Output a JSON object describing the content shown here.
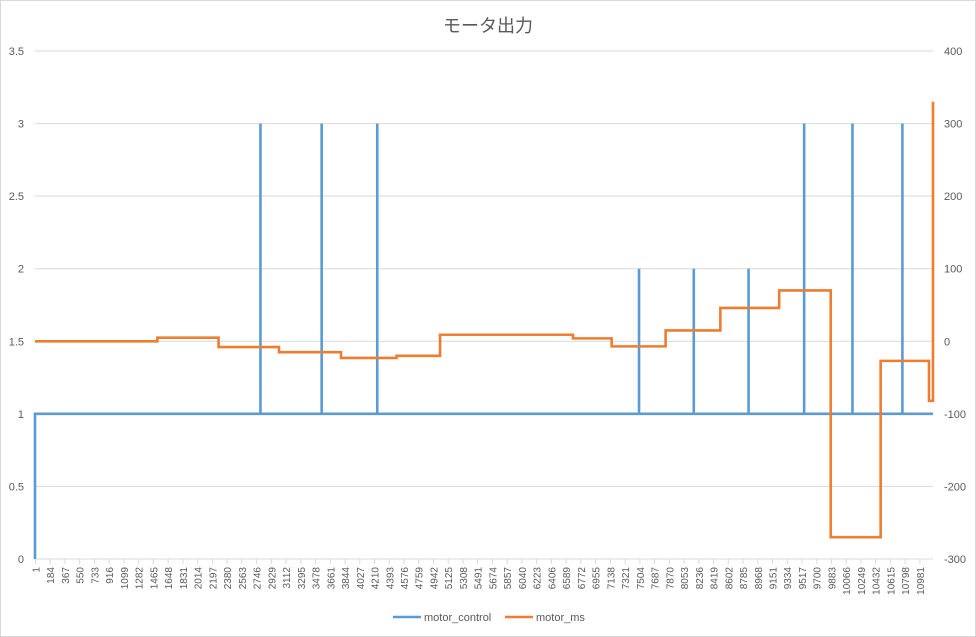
{
  "chart_data": {
    "type": "line",
    "title": "モータ出力",
    "xlabel": "",
    "ylabel": "",
    "y_left": {
      "ylim": [
        0,
        3.5
      ],
      "ticks": [
        "0",
        "0.5",
        "1",
        "1.5",
        "2",
        "2.5",
        "3",
        "3.5"
      ]
    },
    "y_right": {
      "ylim": [
        -300,
        400
      ],
      "ticks": [
        "-300",
        "-200",
        "-100",
        "0",
        "100",
        "200",
        "300",
        "400"
      ]
    },
    "x_ticks": [
      "1",
      "184",
      "367",
      "550",
      "733",
      "916",
      "1099",
      "1282",
      "1465",
      "1648",
      "1831",
      "2014",
      "2197",
      "2380",
      "2563",
      "2746",
      "2929",
      "3112",
      "3295",
      "3478",
      "3661",
      "3844",
      "4027",
      "4210",
      "4393",
      "4576",
      "4759",
      "4942",
      "5125",
      "5308",
      "5491",
      "5674",
      "5857",
      "6040",
      "6223",
      "6406",
      "6589",
      "6772",
      "6955",
      "7138",
      "7321",
      "7504",
      "7687",
      "7870",
      "8053",
      "8236",
      "8419",
      "8602",
      "8785",
      "8968",
      "9151",
      "9334",
      "9517",
      "9700",
      "9883",
      "10066",
      "10249",
      "10432",
      "10615",
      "10798",
      "10981"
    ],
    "xlim": [
      1,
      11050
    ],
    "grid": true,
    "legend": "bottom-center",
    "series": [
      {
        "name": "motor_control",
        "axis": "left",
        "color": "#5b9bd5",
        "baseline": 1,
        "start": {
          "x": 1,
          "from": 0,
          "to": 1
        },
        "spikes": [
          {
            "x": 2800,
            "value": 3
          },
          {
            "x": 3560,
            "value": 3
          },
          {
            "x": 4250,
            "value": 3
          },
          {
            "x": 7500,
            "value": 2
          },
          {
            "x": 8180,
            "value": 2
          },
          {
            "x": 8860,
            "value": 2
          },
          {
            "x": 9550,
            "value": 3
          },
          {
            "x": 10150,
            "value": 3
          },
          {
            "x": 10770,
            "value": 3
          }
        ]
      },
      {
        "name": "motor_ms",
        "axis": "right",
        "color": "#ed7d31",
        "steps": [
          {
            "x": 1,
            "value": 0
          },
          {
            "x": 1520,
            "value": 5
          },
          {
            "x": 2280,
            "value": -8
          },
          {
            "x": 3030,
            "value": -15
          },
          {
            "x": 3800,
            "value": -23
          },
          {
            "x": 4490,
            "value": -20
          },
          {
            "x": 5030,
            "value": 9
          },
          {
            "x": 6680,
            "value": 4
          },
          {
            "x": 7160,
            "value": -7
          },
          {
            "x": 7830,
            "value": 15
          },
          {
            "x": 8510,
            "value": 46
          },
          {
            "x": 9240,
            "value": 70
          },
          {
            "x": 9880,
            "value": -270
          },
          {
            "x": 10500,
            "value": -27
          },
          {
            "x": 11100,
            "value": -82
          },
          {
            "x": 12180,
            "value": 330
          }
        ],
        "end_x": 12180
      }
    ]
  }
}
